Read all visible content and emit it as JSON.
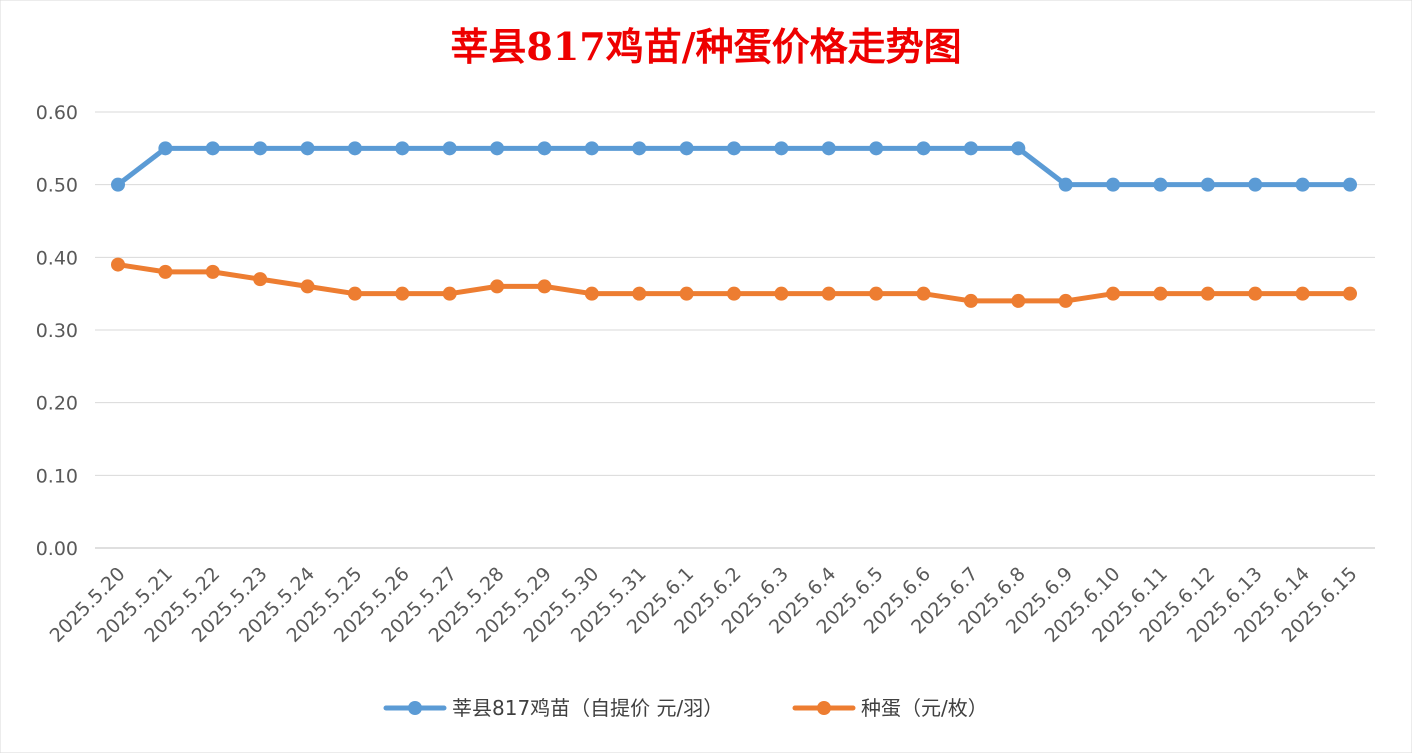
{
  "chart_data": {
    "type": "line",
    "title": "莘县817鸡苗/种蛋价格走势图",
    "categories": [
      "2025.5.20",
      "2025.5.21",
      "2025.5.22",
      "2025.5.23",
      "2025.5.24",
      "2025.5.25",
      "2025.5.26",
      "2025.5.27",
      "2025.5.28",
      "2025.5.29",
      "2025.5.30",
      "2025.5.31",
      "2025.6.1",
      "2025.6.2",
      "2025.6.3",
      "2025.6.4",
      "2025.6.5",
      "2025.6.6",
      "2025.6.7",
      "2025.6.8",
      "2025.6.9",
      "2025.6.10",
      "2025.6.11",
      "2025.6.12",
      "2025.6.13",
      "2025.6.14",
      "2025.6.15"
    ],
    "y_ticks": [
      "0.00",
      "0.10",
      "0.20",
      "0.30",
      "0.40",
      "0.50",
      "0.60"
    ],
    "ylim": [
      0,
      0.6
    ],
    "grid": true,
    "legend_position": "bottom",
    "series": [
      {
        "name": "莘县817鸡苗（自提价 元/羽）",
        "color": "#5b9bd5",
        "values": [
          0.5,
          0.55,
          0.55,
          0.55,
          0.55,
          0.55,
          0.55,
          0.55,
          0.55,
          0.55,
          0.55,
          0.55,
          0.55,
          0.55,
          0.55,
          0.55,
          0.55,
          0.55,
          0.55,
          0.55,
          0.5,
          0.5,
          0.5,
          0.5,
          0.5,
          0.5,
          0.5
        ]
      },
      {
        "name": "种蛋（元/枚）",
        "color": "#ed7d31",
        "values": [
          0.39,
          0.38,
          0.38,
          0.37,
          0.36,
          0.35,
          0.35,
          0.35,
          0.36,
          0.36,
          0.35,
          0.35,
          0.35,
          0.35,
          0.35,
          0.35,
          0.35,
          0.35,
          0.34,
          0.34,
          0.34,
          0.35,
          0.35,
          0.35,
          0.35,
          0.35,
          0.35
        ]
      }
    ]
  }
}
